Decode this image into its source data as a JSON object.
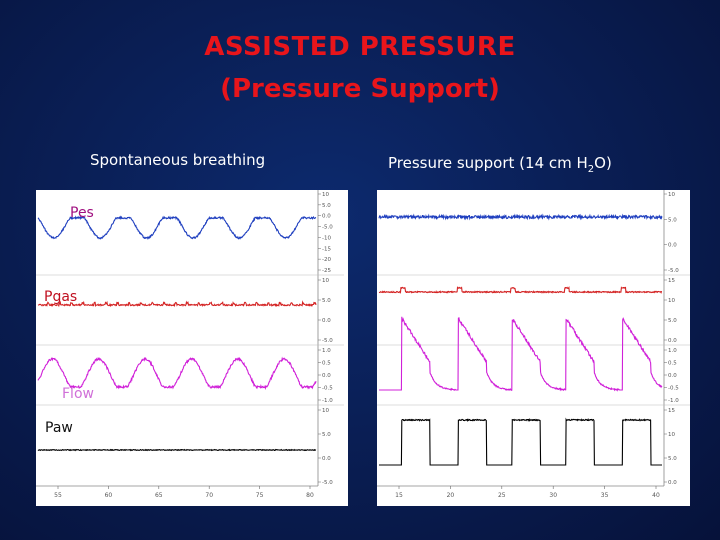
{
  "slide": {
    "title_line1": "ASSISTED PRESSURE",
    "title_line2": "(Pressure Support)",
    "left_caption": "Spontaneous breathing",
    "right_caption_main": "Pressure support (14 cm H",
    "right_caption_sub": "2",
    "right_caption_end": "O)"
  },
  "colors": {
    "title": "#e8151b",
    "pes": "#1f3fbf",
    "pgas": "#d42424",
    "flow": "#d020d8",
    "paw": "#000000",
    "label_pes": "#a01080",
    "label_pgas": "#c01020",
    "label_flow": "#d070d8",
    "label_paw": "#111111"
  },
  "chart_data": [
    {
      "type": "line",
      "title": "Spontaneous breathing",
      "series": [
        {
          "name": "Pes",
          "cycles": 6,
          "waveform": "sinusoidal dips"
        },
        {
          "name": "Pgas",
          "cycles": 6,
          "waveform": "flat with small ripples"
        },
        {
          "name": "Flow",
          "cycles": 6,
          "waveform": "sinusoidal rises"
        },
        {
          "name": "Paw",
          "cycles": 6,
          "waveform": "flat"
        }
      ],
      "x_tick_labels": [
        "55",
        "60",
        "65",
        "70",
        "75",
        "80"
      ],
      "axis_tick_labels": {
        "pes": [
          "10",
          "5.0",
          "0.0",
          "-5.0",
          "-10",
          "-15",
          "-20",
          "-25"
        ],
        "pgas": [
          "10",
          "5.0",
          "0.0",
          "-5.0"
        ],
        "flow": [
          "1.0",
          "0.5",
          "0.0",
          "-0.5",
          "-1.0"
        ],
        "paw": [
          "10",
          "5.0",
          "0.0",
          "-5.0"
        ]
      }
    },
    {
      "type": "line",
      "title": "Pressure support (14 cm H2O)",
      "series": [
        {
          "name": "Pes",
          "cycles": 5,
          "waveform": "flat with small noise"
        },
        {
          "name": "Pgas",
          "cycles": 5,
          "waveform": "flat with small dips"
        },
        {
          "name": "Flow",
          "cycles": 5,
          "waveform": "decelerating flow"
        },
        {
          "name": "Paw",
          "cycles": 5,
          "waveform": "square pressure pulses"
        }
      ],
      "x_tick_labels": [
        "15",
        "20",
        "25",
        "30",
        "35",
        "40"
      ],
      "axis_tick_labels": {
        "pes": [
          "10",
          "5.0",
          "0.0",
          "-5.0"
        ],
        "pgas": [
          "15",
          "10",
          "5.0",
          "0.0"
        ],
        "flow": [
          "1.0",
          "0.5",
          "0.0",
          "-0.5",
          "-1.0"
        ],
        "paw": [
          "15",
          "10",
          "5.0",
          "0.0"
        ]
      }
    }
  ]
}
